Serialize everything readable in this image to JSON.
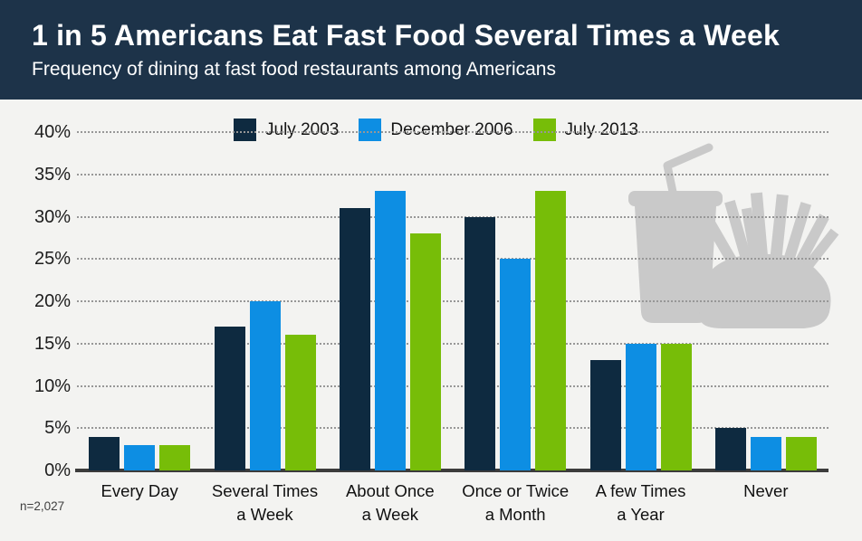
{
  "header": {
    "title": "1 in 5 Americans Eat Fast Food Several Times a Week",
    "subtitle": "Frequency of dining at fast food restaurants among Americans"
  },
  "legend": [
    {
      "label": "July 2003",
      "color": "#0e2a40"
    },
    {
      "label": "December 2006",
      "color": "#0d8ee3"
    },
    {
      "label": "July 2013",
      "color": "#77bd08"
    }
  ],
  "chart_data": {
    "type": "bar",
    "title": "1 in 5 Americans Eat Fast Food Several Times a Week",
    "subtitle": "Frequency of dining at fast food restaurants among Americans",
    "categories": [
      "Every Day",
      "Several Times a Week",
      "About Once a Week",
      "Once or Twice a Month",
      "A few Times a Year",
      "Never"
    ],
    "category_label_lines": [
      [
        "Every Day"
      ],
      [
        "Several Times",
        "a Week"
      ],
      [
        "About Once",
        "a Week"
      ],
      [
        "Once or Twice",
        "a Month"
      ],
      [
        "A few Times",
        "a Year"
      ],
      [
        "Never"
      ]
    ],
    "series": [
      {
        "name": "July 2003",
        "color": "#0e2a40",
        "values": [
          4,
          17,
          31,
          30,
          13,
          5
        ]
      },
      {
        "name": "December 2006",
        "color": "#0d8ee3",
        "values": [
          3,
          20,
          33,
          25,
          15,
          4
        ]
      },
      {
        "name": "July 2013",
        "color": "#77bd08",
        "values": [
          3,
          16,
          28,
          33,
          15,
          4
        ]
      }
    ],
    "xlabel": "",
    "ylabel": "",
    "ylim": [
      0,
      40
    ],
    "ytick_step": 5,
    "y_tick_labels": [
      "0%",
      "5%",
      "10%",
      "15%",
      "20%",
      "25%",
      "30%",
      "35%",
      "40%"
    ],
    "grid": "horizontal-dotted",
    "legend_position": "top"
  },
  "footnote": "n=2,027",
  "colors": {
    "header_bg": "#1d3349",
    "chart_bg": "#f3f3f1",
    "gridline": "#979797",
    "axis_line": "#3c3c3c",
    "silhouette": "#c9c9c9"
  }
}
